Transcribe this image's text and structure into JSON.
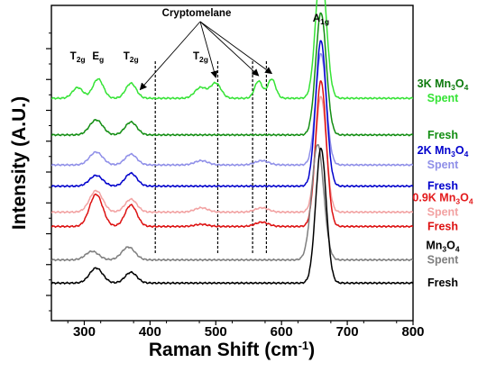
{
  "chart_data": {
    "type": "line",
    "xlabel": {
      "main": "Raman Shift (cm",
      "sup": "-1",
      "end": ")"
    },
    "ylabel": "Intensity (A.U.)",
    "xlim": [
      250,
      800
    ],
    "xticks": [
      300,
      400,
      500,
      600,
      700,
      800
    ],
    "y_tick_labels": "none",
    "grid": false,
    "legend": "right-side labels",
    "peak_labels": [
      {
        "base": "T",
        "sub": "2g",
        "x": 290
      },
      {
        "base": "E",
        "sub": "g",
        "x": 321
      },
      {
        "base": "T",
        "sub": "2g",
        "x": 371
      },
      {
        "base": "T",
        "sub": "2g",
        "x": 477
      },
      {
        "base": "A",
        "sub": "1g",
        "x": 660
      }
    ],
    "annotation": {
      "text": "Cryptomelane",
      "x": 362,
      "arrow_targets": [
        385,
        500,
        565,
        585
      ],
      "marker_lines": [
        408,
        503,
        556,
        577
      ]
    },
    "sample_labels": [
      {
        "pre": "3K Mn",
        "sub1": "3",
        "mid": "O",
        "sub2": "4",
        "color": "#0d7a0d",
        "anchor_series": "3K Spent"
      },
      {
        "pre": "2K Mn",
        "sub1": "3",
        "mid": "O",
        "sub2": "4",
        "color": "#0000cc",
        "anchor_series": "2K Spent"
      },
      {
        "pre": "0.9K Mn",
        "sub1": "3",
        "mid": "O",
        "sub2": "4",
        "color": "#e31a1c",
        "anchor_series": "0.9K Spent"
      },
      {
        "pre": "Mn",
        "sub1": "3",
        "mid": "O",
        "sub2": "4",
        "color": "#000000",
        "anchor_series": "Mn3O4 Spent"
      }
    ],
    "series": [
      {
        "name": "Spent",
        "sample": "3K",
        "color": "#35e335",
        "baseline": 90.3,
        "peaks": [
          [
            290,
            5,
            8
          ],
          [
            321,
            9,
            8
          ],
          [
            371,
            7,
            8
          ],
          [
            477,
            5,
            9
          ],
          [
            500,
            7,
            8
          ],
          [
            565,
            8,
            6
          ],
          [
            585,
            9,
            6
          ],
          [
            660,
            62,
            8
          ]
        ]
      },
      {
        "name": "Fresh",
        "sample": "3K",
        "color": "#138e13",
        "baseline": 73.2,
        "peaks": [
          [
            318,
            7,
            10
          ],
          [
            371,
            6,
            9
          ],
          [
            660,
            57,
            8
          ]
        ]
      },
      {
        "name": "Spent",
        "sample": "2K",
        "color": "#8f8fe8",
        "baseline": 59.2,
        "peaks": [
          [
            318,
            6,
            10
          ],
          [
            371,
            5,
            9
          ],
          [
            478,
            2,
            10
          ],
          [
            570,
            2,
            10
          ],
          [
            660,
            52,
            8
          ]
        ]
      },
      {
        "name": "Fresh",
        "sample": "2K",
        "color": "#0000cc",
        "baseline": 49.3,
        "peaks": [
          [
            318,
            5,
            10
          ],
          [
            371,
            6,
            9
          ],
          [
            660,
            68,
            8
          ]
        ]
      },
      {
        "name": "Spent",
        "sample": "0.9K",
        "color": "#f2a2a2",
        "baseline": 37.2,
        "peaks": [
          [
            318,
            10,
            10
          ],
          [
            371,
            6,
            9
          ],
          [
            478,
            2,
            10
          ],
          [
            570,
            2,
            10
          ],
          [
            660,
            54,
            8
          ]
        ]
      },
      {
        "name": "Fresh",
        "sample": "0.9K",
        "color": "#dd1111",
        "baseline": 30.5,
        "peaks": [
          [
            318,
            15,
            10
          ],
          [
            371,
            10,
            9
          ],
          [
            478,
            1,
            10
          ],
          [
            570,
            2,
            10
          ],
          [
            660,
            68,
            8
          ]
        ]
      },
      {
        "name": "Spent",
        "sample": "Mn3O4",
        "color": "#7f7f7f",
        "baseline": 14.9,
        "peaks": [
          [
            312,
            4,
            10
          ],
          [
            367,
            6,
            10
          ],
          [
            655,
            54,
            9
          ]
        ]
      },
      {
        "name": "Fresh",
        "sample": "Mn3O4",
        "color": "#000000",
        "baseline": 4.1,
        "peaks": [
          [
            318,
            7,
            10
          ],
          [
            371,
            5,
            9
          ],
          [
            660,
            63,
            8
          ]
        ]
      }
    ]
  }
}
